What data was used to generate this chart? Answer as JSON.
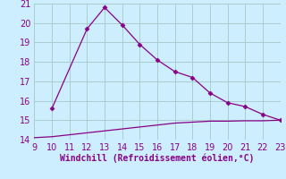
{
  "x": [
    9,
    10,
    11,
    12,
    13,
    14,
    15,
    16,
    17,
    18,
    19,
    20,
    21,
    22,
    23
  ],
  "y_main": [
    null,
    15.6,
    null,
    19.7,
    20.8,
    19.9,
    18.9,
    18.1,
    17.5,
    17.2,
    16.4,
    15.9,
    15.7,
    15.3,
    15.0
  ],
  "y_flat": [
    14.1,
    14.15,
    14.25,
    14.35,
    14.45,
    14.55,
    14.65,
    14.75,
    14.85,
    14.9,
    14.95,
    14.95,
    14.97,
    14.97,
    15.0
  ],
  "xlabel": "Windchill (Refroidissement éolien,°C)",
  "xlim": [
    9,
    23
  ],
  "ylim": [
    14,
    21
  ],
  "yticks": [
    14,
    15,
    16,
    17,
    18,
    19,
    20,
    21
  ],
  "xticks": [
    9,
    10,
    11,
    12,
    13,
    14,
    15,
    16,
    17,
    18,
    19,
    20,
    21,
    22,
    23
  ],
  "line_color": "#880088",
  "bg_color": "#cceeff",
  "grid_color": "#aacccc",
  "marker": "D",
  "markersize": 2.5,
  "tick_fontsize": 7,
  "xlabel_fontsize": 7
}
